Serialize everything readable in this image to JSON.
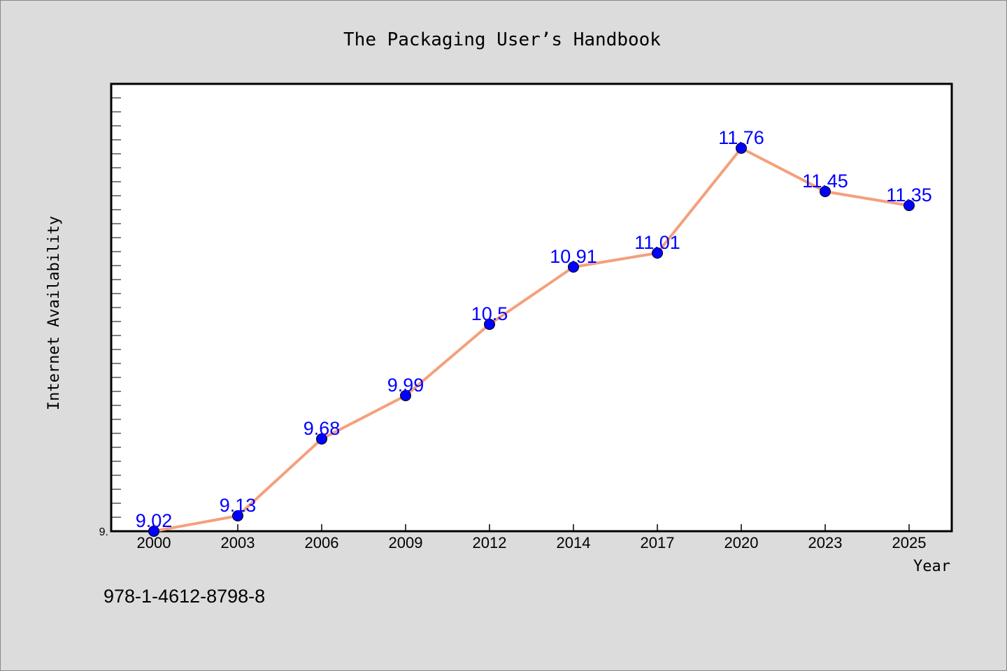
{
  "chart_data": {
    "type": "line",
    "title": "The Packaging User’s Handbook",
    "xlabel": "Year",
    "ylabel": "Internet Availability",
    "categories": [
      "2000",
      "2003",
      "2006",
      "2009",
      "2012",
      "2014",
      "2017",
      "2020",
      "2023",
      "2025"
    ],
    "series": [
      {
        "values": [
          9.02,
          9.13,
          9.68,
          9.99,
          10.5,
          10.91,
          11.01,
          11.76,
          11.45,
          11.35
        ]
      }
    ],
    "data_labels": [
      "9.02",
      "9.13",
      "9.68",
      "9.99",
      "10.5",
      "10.91",
      "11.01",
      "11.76",
      "11.45",
      "11.35"
    ],
    "ylim": [
      9.02,
      12.22
    ],
    "y_tick_labels": [
      "9."
    ],
    "grid": false,
    "line_color": "#f4a07c",
    "marker_color": "#0000ff",
    "label_color": "#0000ff"
  },
  "footer_text": "978-1-4612-8798-8"
}
